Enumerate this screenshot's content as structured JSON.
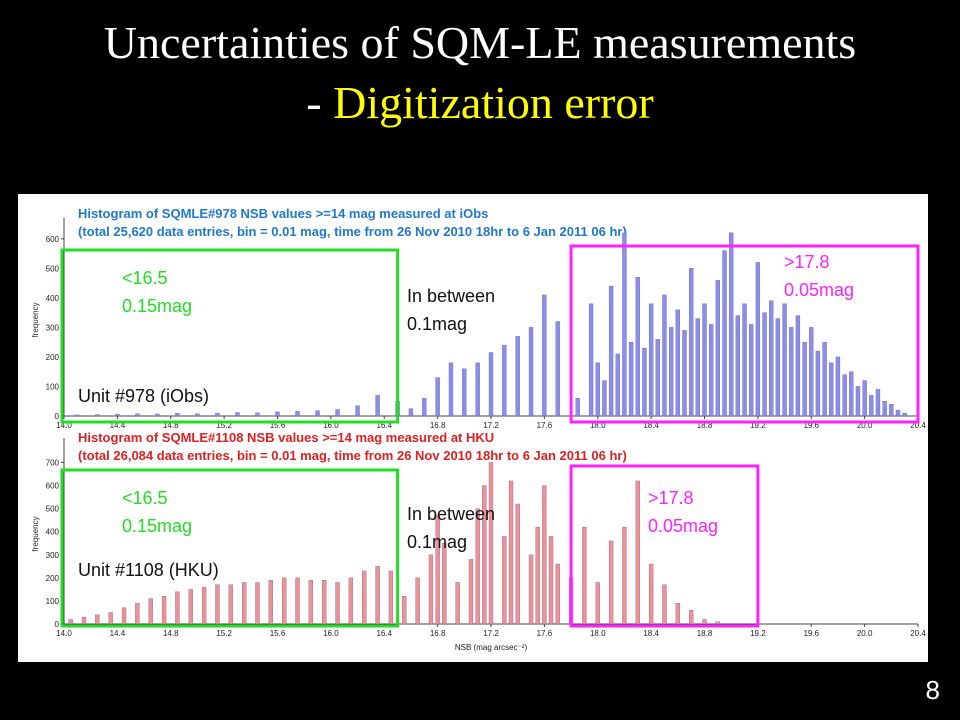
{
  "slide": {
    "title_line1": "Uncertainties of SQM-LE measurements",
    "title_line2_prefix": "- ",
    "title_line2_highlight": "Digitization error",
    "page_number": "8",
    "colors": {
      "title": "#ffffff",
      "highlight": "#ffff00",
      "background": "#000000"
    }
  },
  "chart_data": [
    {
      "type": "bar",
      "title_lines": [
        "Histogram of SQMLE#978 NSB values >=14 mag measured at iObs",
        "(total 25,620 data entries, bin = 0.01 mag, time from 26 Nov 2010 18hr to 6 Jan 2011 06 hr)"
      ],
      "title_color": "#1f78d0",
      "ylabel": "frequency",
      "xlim": [
        14.0,
        20.4
      ],
      "ylim": [
        0,
        650
      ],
      "yticks": [
        "0",
        "100",
        "200",
        "300",
        "400",
        "500",
        "600"
      ],
      "xticks": [
        "14.0",
        "14.4",
        "14.8",
        "15.2",
        "15.6",
        "16.0",
        "16.4",
        "16.8",
        "17.2",
        "17.6",
        "18.0",
        "18.4",
        "18.8",
        "19.2",
        "19.6",
        "20.0",
        "20.4"
      ],
      "bar_color": "#8a8ee8",
      "unit_label": "Unit #978 (iObs)",
      "annotations": {
        "low": {
          "line1": "<16.5",
          "line2": "0.15mag",
          "color": "#22dd22"
        },
        "mid": {
          "line1": "In between",
          "line2": "0.1mag",
          "color": "#111111"
        },
        "high": {
          "line1": ">17.8",
          "line2": "0.05mag",
          "color": "#ff22ff"
        }
      },
      "bars": [
        [
          14.1,
          4
        ],
        [
          14.25,
          5
        ],
        [
          14.4,
          6
        ],
        [
          14.55,
          8
        ],
        [
          14.7,
          7
        ],
        [
          14.85,
          9
        ],
        [
          15.0,
          8
        ],
        [
          15.15,
          10
        ],
        [
          15.3,
          12
        ],
        [
          15.45,
          11
        ],
        [
          15.6,
          14
        ],
        [
          15.75,
          16
        ],
        [
          15.9,
          18
        ],
        [
          16.05,
          22
        ],
        [
          16.2,
          35
        ],
        [
          16.35,
          70
        ],
        [
          16.5,
          50
        ],
        [
          16.6,
          25
        ],
        [
          16.7,
          60
        ],
        [
          16.8,
          130
        ],
        [
          16.9,
          180
        ],
        [
          17.0,
          160
        ],
        [
          17.1,
          180
        ],
        [
          17.2,
          215
        ],
        [
          17.3,
          240
        ],
        [
          17.4,
          270
        ],
        [
          17.5,
          300
        ],
        [
          17.6,
          410
        ],
        [
          17.7,
          320
        ],
        [
          17.85,
          60
        ],
        [
          17.95,
          380
        ],
        [
          18.0,
          180
        ],
        [
          18.05,
          120
        ],
        [
          18.1,
          440
        ],
        [
          18.15,
          210
        ],
        [
          18.2,
          620
        ],
        [
          18.25,
          250
        ],
        [
          18.3,
          470
        ],
        [
          18.35,
          230
        ],
        [
          18.4,
          380
        ],
        [
          18.45,
          260
        ],
        [
          18.5,
          410
        ],
        [
          18.55,
          300
        ],
        [
          18.6,
          360
        ],
        [
          18.65,
          290
        ],
        [
          18.7,
          500
        ],
        [
          18.75,
          330
        ],
        [
          18.8,
          380
        ],
        [
          18.85,
          310
        ],
        [
          18.9,
          460
        ],
        [
          18.95,
          560
        ],
        [
          19.0,
          620
        ],
        [
          19.05,
          340
        ],
        [
          19.1,
          380
        ],
        [
          19.15,
          310
        ],
        [
          19.2,
          520
        ],
        [
          19.25,
          350
        ],
        [
          19.3,
          390
        ],
        [
          19.35,
          330
        ],
        [
          19.4,
          380
        ],
        [
          19.45,
          300
        ],
        [
          19.5,
          340
        ],
        [
          19.55,
          250
        ],
        [
          19.6,
          300
        ],
        [
          19.65,
          220
        ],
        [
          19.7,
          250
        ],
        [
          19.75,
          180
        ],
        [
          19.8,
          200
        ],
        [
          19.85,
          140
        ],
        [
          19.9,
          150
        ],
        [
          19.95,
          100
        ],
        [
          20.0,
          120
        ],
        [
          20.05,
          70
        ],
        [
          20.1,
          90
        ],
        [
          20.15,
          50
        ],
        [
          20.2,
          40
        ],
        [
          20.25,
          20
        ],
        [
          20.3,
          10
        ]
      ]
    },
    {
      "type": "bar",
      "title_lines": [
        "Histogram of SQMLE#1108 NSB values >=14 mag measured at HKU",
        "(total 26,084 data entries, bin = 0.01 mag, time from 26 Nov 2010 18hr to 6 Jan 2011 06 hr)"
      ],
      "title_color": "#e02020",
      "ylabel": "frequency",
      "xlabel": "NSB (mag arcsec⁻²)",
      "xlim": [
        14.0,
        20.4
      ],
      "ylim": [
        0,
        780
      ],
      "yticks": [
        "0",
        "100",
        "200",
        "300",
        "400",
        "500",
        "600",
        "700"
      ],
      "xticks": [
        "14.0",
        "14.4",
        "14.8",
        "15.2",
        "15.6",
        "16.0",
        "16.4",
        "16.8",
        "17.2",
        "17.6",
        "18.0",
        "18.4",
        "18.8",
        "19.2",
        "19.6",
        "20.0",
        "20.4"
      ],
      "bar_color": "#f09090",
      "unit_label": "Unit #1108 (HKU)",
      "annotations": {
        "low": {
          "line1": "<16.5",
          "line2": "0.15mag",
          "color": "#22dd22"
        },
        "mid": {
          "line1": "In between",
          "line2": "0.1mag",
          "color": "#111111"
        },
        "high": {
          "line1": ">17.8",
          "line2": "0.05mag",
          "color": "#ff22ff"
        }
      },
      "bars": [
        [
          14.05,
          20
        ],
        [
          14.15,
          30
        ],
        [
          14.25,
          40
        ],
        [
          14.35,
          50
        ],
        [
          14.45,
          70
        ],
        [
          14.55,
          90
        ],
        [
          14.65,
          110
        ],
        [
          14.75,
          120
        ],
        [
          14.85,
          140
        ],
        [
          14.95,
          150
        ],
        [
          15.05,
          160
        ],
        [
          15.15,
          170
        ],
        [
          15.25,
          170
        ],
        [
          15.35,
          180
        ],
        [
          15.45,
          180
        ],
        [
          15.55,
          190
        ],
        [
          15.65,
          200
        ],
        [
          15.75,
          200
        ],
        [
          15.85,
          190
        ],
        [
          15.95,
          190
        ],
        [
          16.05,
          180
        ],
        [
          16.15,
          200
        ],
        [
          16.25,
          230
        ],
        [
          16.35,
          250
        ],
        [
          16.45,
          230
        ],
        [
          16.55,
          120
        ],
        [
          16.65,
          200
        ],
        [
          16.75,
          300
        ],
        [
          16.8,
          470
        ],
        [
          16.85,
          350
        ],
        [
          16.95,
          180
        ],
        [
          17.05,
          280
        ],
        [
          17.1,
          500
        ],
        [
          17.15,
          600
        ],
        [
          17.2,
          700
        ],
        [
          17.3,
          380
        ],
        [
          17.35,
          620
        ],
        [
          17.4,
          520
        ],
        [
          17.5,
          300
        ],
        [
          17.55,
          420
        ],
        [
          17.6,
          600
        ],
        [
          17.65,
          380
        ],
        [
          17.7,
          260
        ],
        [
          17.8,
          200
        ],
        [
          17.9,
          420
        ],
        [
          18.0,
          180
        ],
        [
          18.1,
          360
        ],
        [
          18.2,
          420
        ],
        [
          18.3,
          620
        ],
        [
          18.4,
          260
        ],
        [
          18.5,
          170
        ],
        [
          18.6,
          90
        ],
        [
          18.7,
          60
        ],
        [
          18.8,
          20
        ],
        [
          18.9,
          10
        ]
      ]
    }
  ]
}
